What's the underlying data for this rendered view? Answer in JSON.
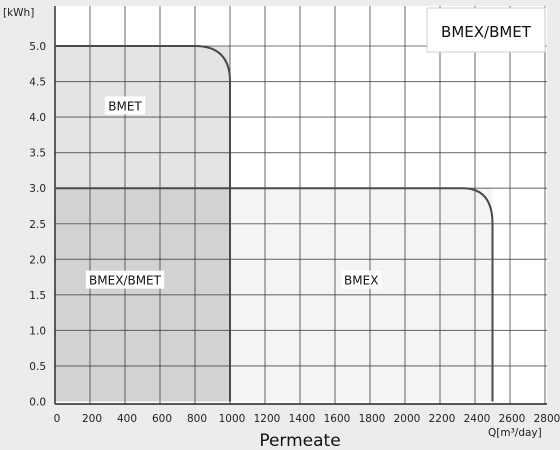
{
  "chart_data": {
    "type": "area",
    "title": "BMEX/BMET",
    "xlabel": "Permeate",
    "xunit": "Q[m³/day]",
    "yunit": "[kWh]",
    "xlim": [
      0,
      2800
    ],
    "ylim": [
      0,
      5.25
    ],
    "x_ticks": [
      "0",
      "200",
      "400",
      "600",
      "800",
      "1000",
      "1200",
      "1400",
      "1600",
      "1800",
      "2000",
      "2200",
      "2400",
      "2600",
      "2800"
    ],
    "y_ticks": [
      "0.0",
      "0.5",
      "1.0",
      "1.5",
      "2.0",
      "2.5",
      "3.0",
      "3.5",
      "4.0",
      "4.5",
      "5.0"
    ],
    "grid": true,
    "regions": [
      {
        "name": "BMET",
        "x_range": [
          0,
          1000
        ],
        "y_range": [
          3.0,
          5.0
        ],
        "label_at": [
          400,
          4.15
        ],
        "fill": "#e4e4e4"
      },
      {
        "name": "BMEX/BMET",
        "x_range": [
          0,
          1000
        ],
        "y_range": [
          0,
          3.0
        ],
        "label_at": [
          400,
          1.7
        ],
        "fill": "#d2d2d2"
      },
      {
        "name": "BMEX",
        "x_range": [
          1000,
          2500
        ],
        "y_range": [
          0,
          3.0
        ],
        "label_at": [
          1750,
          1.7
        ],
        "fill": "#f4f4f4"
      }
    ],
    "series": [
      {
        "name": "BMET",
        "points": [
          [
            0,
            5.0
          ],
          [
            800,
            5.0
          ],
          [
            1000,
            4.5
          ],
          [
            1000,
            0
          ]
        ]
      },
      {
        "name": "BMEX",
        "points": [
          [
            0,
            3.0
          ],
          [
            2330,
            3.0
          ],
          [
            2500,
            2.5
          ],
          [
            2500,
            0
          ]
        ]
      }
    ]
  }
}
